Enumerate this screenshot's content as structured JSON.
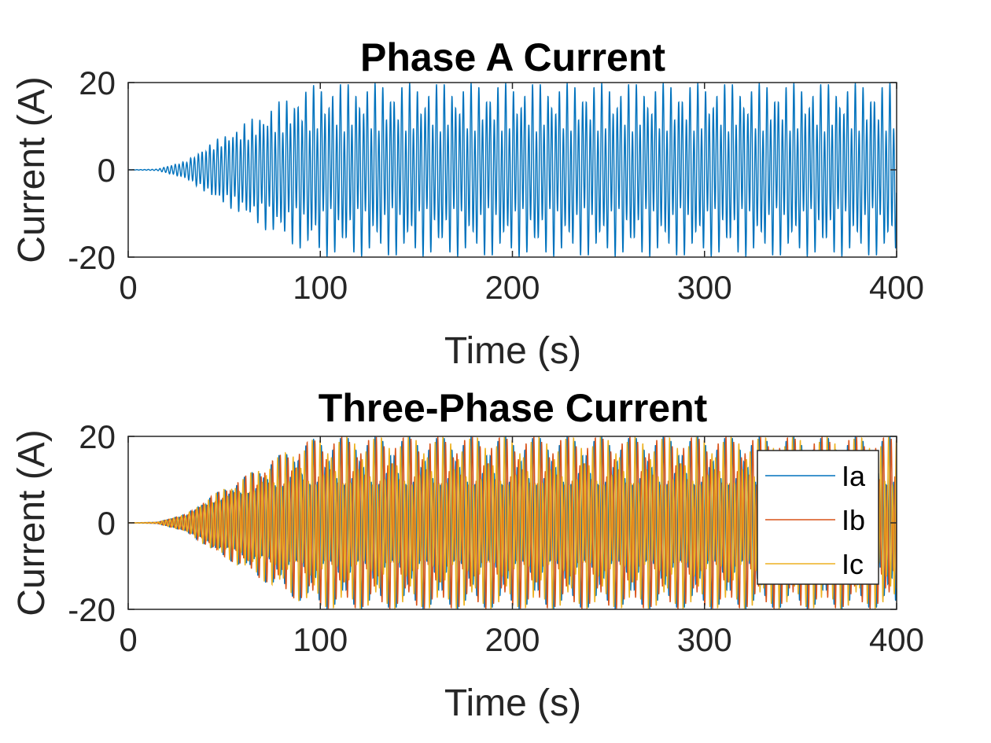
{
  "chart_data": [
    {
      "type": "line",
      "title": "Phase A Current",
      "xlabel": "Time (s)",
      "ylabel": "Current (A)",
      "xlim": [
        0,
        400
      ],
      "ylim": [
        -20,
        20
      ],
      "xticks": [
        "0",
        "100",
        "200",
        "300",
        "400"
      ],
      "yticks": [
        "-20",
        "0",
        "20"
      ],
      "grid": false,
      "legend": null,
      "series": [
        {
          "color": "#0072BD",
          "description": "oscillating current, amplitude grows from 0 and settles between -20 and 20 (inner envelope about ±10)",
          "envelope_points": [
            {
              "t": 0,
              "amp": 0
            },
            {
              "t": 15,
              "amp": 0.2
            },
            {
              "t": 30,
              "amp": 2.5
            },
            {
              "t": 45,
              "amp": 8
            },
            {
              "t": 60,
              "amp": 12
            },
            {
              "t": 75,
              "amp": 16
            },
            {
              "t": 90,
              "amp": 19
            },
            {
              "t": 100,
              "amp": 20
            },
            {
              "t": 400,
              "amp": 20
            }
          ]
        }
      ]
    },
    {
      "type": "line",
      "title": "Three-Phase Current",
      "xlabel": "Time (s)",
      "ylabel": "Current (A)",
      "xlim": [
        0,
        400
      ],
      "ylim": [
        -20,
        20
      ],
      "xticks": [
        "0",
        "100",
        "200",
        "300",
        "400"
      ],
      "yticks": [
        "-20",
        "0",
        "20"
      ],
      "grid": false,
      "legend": "top-right",
      "series": [
        {
          "name": "Ia",
          "color": "#0072BD"
        },
        {
          "name": "Ib",
          "color": "#D95319"
        },
        {
          "name": "Ic",
          "color": "#EDB120"
        }
      ]
    }
  ]
}
